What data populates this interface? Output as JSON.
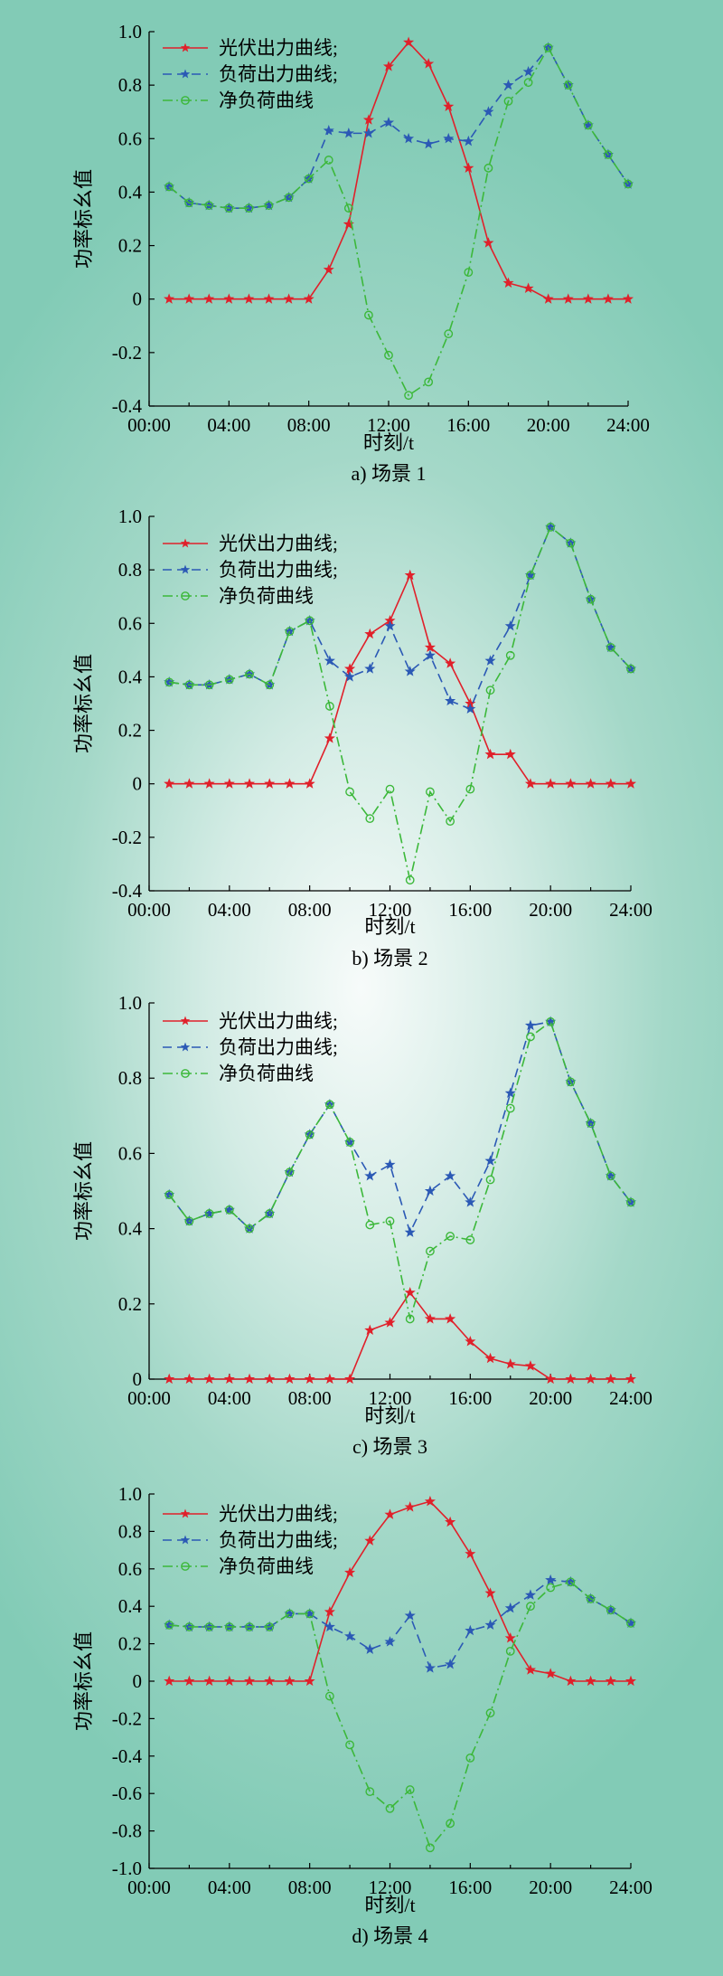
{
  "chart_data": [
    {
      "type": "line",
      "caption": "a) 场景 1",
      "xlabel": "时刻/t",
      "ylabel": "功率标幺值",
      "xticks": [
        "00:00",
        "04:00",
        "08:00",
        "12:00",
        "16:00",
        "20:00",
        "24:00"
      ],
      "yticks": [
        "-0.4",
        "-0.2",
        "0",
        "0.2",
        "0.4",
        "0.6",
        "0.8",
        "1.0"
      ],
      "xlim": [
        0,
        24
      ],
      "ylim": [
        -0.4,
        1.0
      ],
      "x": [
        1,
        2,
        3,
        4,
        5,
        6,
        7,
        8,
        9,
        10,
        11,
        12,
        13,
        14,
        15,
        16,
        17,
        18,
        19,
        20,
        21,
        22,
        23,
        24
      ],
      "series": [
        {
          "name": "光伏出力曲线;",
          "color": "#e0202a",
          "marker": "star",
          "dash": "solid",
          "values": [
            0,
            0,
            0,
            0,
            0,
            0,
            0,
            0,
            0.11,
            0.28,
            0.67,
            0.87,
            0.96,
            0.88,
            0.72,
            0.49,
            0.21,
            0.06,
            0.04,
            0,
            0,
            0,
            0,
            0
          ]
        },
        {
          "name": "负荷出力曲线;",
          "color": "#2b59b5",
          "marker": "star",
          "dash": "dash",
          "values": [
            0.42,
            0.36,
            0.35,
            0.34,
            0.34,
            0.35,
            0.38,
            0.45,
            0.63,
            0.62,
            0.62,
            0.66,
            0.6,
            0.58,
            0.6,
            0.59,
            0.7,
            0.8,
            0.85,
            0.94,
            0.8,
            0.65,
            0.54,
            0.43
          ]
        },
        {
          "name": "净负荷曲线",
          "color": "#3cb83a",
          "marker": "circle",
          "dash": "dashdot",
          "values": [
            0.42,
            0.36,
            0.35,
            0.34,
            0.34,
            0.35,
            0.38,
            0.45,
            0.52,
            0.34,
            -0.06,
            -0.21,
            -0.36,
            -0.31,
            -0.13,
            0.1,
            0.49,
            0.74,
            0.81,
            0.94,
            0.8,
            0.65,
            0.54,
            0.43
          ]
        }
      ]
    },
    {
      "type": "line",
      "caption": "b) 场景 2",
      "xlabel": "时刻/t",
      "ylabel": "功率标幺值",
      "xticks": [
        "00:00",
        "04:00",
        "08:00",
        "12:00",
        "16:00",
        "20:00",
        "24:00"
      ],
      "yticks": [
        "-0.4",
        "-0.2",
        "0",
        "0.2",
        "0.4",
        "0.6",
        "0.8",
        "1.0"
      ],
      "xlim": [
        0,
        24
      ],
      "ylim": [
        -0.4,
        1.0
      ],
      "x": [
        1,
        2,
        3,
        4,
        5,
        6,
        7,
        8,
        9,
        10,
        11,
        12,
        13,
        14,
        15,
        16,
        17,
        18,
        19,
        20,
        21,
        22,
        23,
        24
      ],
      "series": [
        {
          "name": "光伏出力曲线;",
          "color": "#e0202a",
          "marker": "star",
          "dash": "solid",
          "values": [
            0,
            0,
            0,
            0,
            0,
            0,
            0,
            0,
            0.17,
            0.43,
            0.56,
            0.61,
            0.78,
            0.51,
            0.45,
            0.3,
            0.11,
            0.11,
            0,
            0,
            0,
            0,
            0,
            0
          ]
        },
        {
          "name": "负荷出力曲线;",
          "color": "#2b59b5",
          "marker": "star",
          "dash": "dash",
          "values": [
            0.38,
            0.37,
            0.37,
            0.39,
            0.41,
            0.37,
            0.57,
            0.61,
            0.46,
            0.4,
            0.43,
            0.59,
            0.42,
            0.48,
            0.31,
            0.28,
            0.46,
            0.59,
            0.78,
            0.96,
            0.9,
            0.69,
            0.51,
            0.43
          ]
        },
        {
          "name": "净负荷曲线",
          "color": "#3cb83a",
          "marker": "circle",
          "dash": "dashdot",
          "values": [
            0.38,
            0.37,
            0.37,
            0.39,
            0.41,
            0.37,
            0.57,
            0.61,
            0.29,
            -0.03,
            -0.13,
            -0.02,
            -0.36,
            -0.03,
            -0.14,
            -0.02,
            0.35,
            0.48,
            0.78,
            0.96,
            0.9,
            0.69,
            0.51,
            0.43
          ]
        }
      ]
    },
    {
      "type": "line",
      "caption": "c) 场景 3",
      "xlabel": "时刻/t",
      "ylabel": "功率标幺值",
      "xticks": [
        "00:00",
        "04:00",
        "08:00",
        "12:00",
        "16:00",
        "20:00",
        "24:00"
      ],
      "yticks": [
        "0",
        "0.2",
        "0.4",
        "0.6",
        "0.8",
        "1.0"
      ],
      "xlim": [
        0,
        24
      ],
      "ylim": [
        0,
        1.0
      ],
      "x": [
        1,
        2,
        3,
        4,
        5,
        6,
        7,
        8,
        9,
        10,
        11,
        12,
        13,
        14,
        15,
        16,
        17,
        18,
        19,
        20,
        21,
        22,
        23,
        24
      ],
      "series": [
        {
          "name": "光伏出力曲线;",
          "color": "#e0202a",
          "marker": "star",
          "dash": "solid",
          "values": [
            0,
            0,
            0,
            0,
            0,
            0,
            0,
            0,
            0,
            0,
            0.13,
            0.15,
            0.23,
            0.16,
            0.16,
            0.1,
            0.055,
            0.04,
            0.035,
            0,
            0,
            0,
            0,
            0
          ]
        },
        {
          "name": "负荷出力曲线;",
          "color": "#2b59b5",
          "marker": "star",
          "dash": "dash",
          "values": [
            0.49,
            0.42,
            0.44,
            0.45,
            0.4,
            0.44,
            0.55,
            0.65,
            0.73,
            0.63,
            0.54,
            0.57,
            0.39,
            0.5,
            0.54,
            0.47,
            0.58,
            0.76,
            0.94,
            0.95,
            0.79,
            0.68,
            0.54,
            0.47
          ]
        },
        {
          "name": "净负荷曲线",
          "color": "#3cb83a",
          "marker": "circle",
          "dash": "dashdot",
          "values": [
            0.49,
            0.42,
            0.44,
            0.45,
            0.4,
            0.44,
            0.55,
            0.65,
            0.73,
            0.63,
            0.41,
            0.42,
            0.16,
            0.34,
            0.38,
            0.37,
            0.53,
            0.72,
            0.91,
            0.95,
            0.79,
            0.68,
            0.54,
            0.47
          ]
        }
      ]
    },
    {
      "type": "line",
      "caption": "d) 场景 4",
      "xlabel": "时刻/t",
      "ylabel": "功率标幺值",
      "xticks": [
        "00:00",
        "04:00",
        "08:00",
        "12:00",
        "16:00",
        "20:00",
        "24:00"
      ],
      "yticks": [
        "-1.0",
        "-0.8",
        "-0.6",
        "-0.4",
        "-0.2",
        "0",
        "0.2",
        "0.4",
        "0.6",
        "0.8",
        "1.0"
      ],
      "xlim": [
        0,
        24
      ],
      "ylim": [
        -1.0,
        1.0
      ],
      "x": [
        1,
        2,
        3,
        4,
        5,
        6,
        7,
        8,
        9,
        10,
        11,
        12,
        13,
        14,
        15,
        16,
        17,
        18,
        19,
        20,
        21,
        22,
        23,
        24
      ],
      "series": [
        {
          "name": "光伏出力曲线;",
          "color": "#e0202a",
          "marker": "star",
          "dash": "solid",
          "values": [
            0,
            0,
            0,
            0,
            0,
            0,
            0,
            0,
            0.37,
            0.58,
            0.75,
            0.89,
            0.93,
            0.96,
            0.85,
            0.68,
            0.47,
            0.23,
            0.06,
            0.04,
            0,
            0,
            0,
            0
          ]
        },
        {
          "name": "负荷出力曲线;",
          "color": "#2b59b5",
          "marker": "star",
          "dash": "dash",
          "values": [
            0.3,
            0.29,
            0.29,
            0.29,
            0.29,
            0.29,
            0.36,
            0.36,
            0.29,
            0.24,
            0.17,
            0.21,
            0.35,
            0.07,
            0.09,
            0.27,
            0.3,
            0.39,
            0.46,
            0.54,
            0.53,
            0.44,
            0.38,
            0.31
          ]
        },
        {
          "name": "净负荷曲线",
          "color": "#3cb83a",
          "marker": "circle",
          "dash": "dashdot",
          "values": [
            0.3,
            0.29,
            0.29,
            0.29,
            0.29,
            0.29,
            0.36,
            0.36,
            -0.08,
            -0.34,
            -0.59,
            -0.68,
            -0.58,
            -0.89,
            -0.76,
            -0.41,
            -0.17,
            0.16,
            0.4,
            0.5,
            0.53,
            0.44,
            0.38,
            0.31
          ]
        }
      ]
    }
  ]
}
